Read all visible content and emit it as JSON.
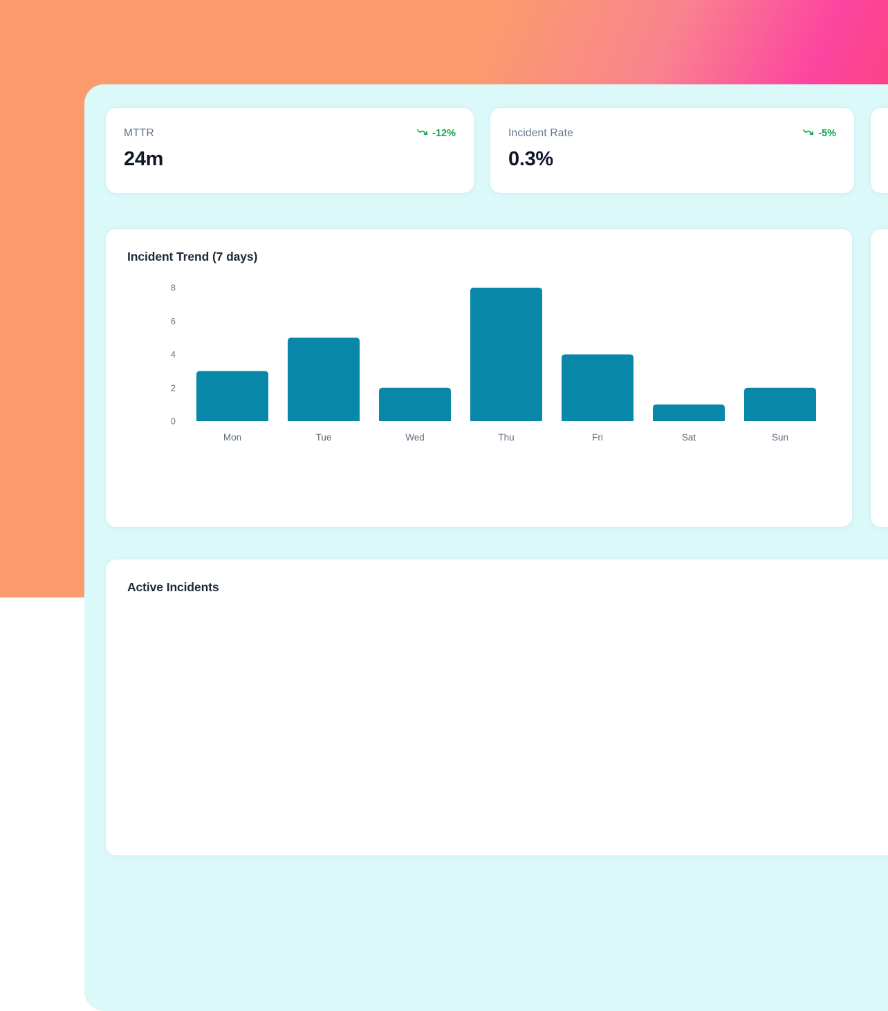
{
  "metrics": [
    {
      "label": "MTTR",
      "value": "24m",
      "trend": "-12%",
      "trend_direction": "down",
      "trend_icon": "trending-down-icon"
    },
    {
      "label": "Incident Rate",
      "value": "0.3%",
      "trend": "-5%",
      "trend_direction": "down",
      "trend_icon": "trending-down-icon"
    }
  ],
  "chart_data": {
    "type": "bar",
    "title": "Incident Trend (7 days)",
    "categories": [
      "Mon",
      "Tue",
      "Wed",
      "Thu",
      "Fri",
      "Sat",
      "Sun"
    ],
    "values": [
      3,
      5,
      2,
      8,
      4,
      1,
      2
    ],
    "xlabel": "",
    "ylabel": "",
    "ylim": [
      0,
      8
    ],
    "yticks": [
      0,
      2,
      4,
      6,
      8
    ],
    "grid": false,
    "legend": false,
    "bar_color": "#0887a8"
  },
  "sections": {
    "active_incidents_title": "Active Incidents"
  },
  "colors": {
    "background_gradient": [
      "#fb9b6e",
      "#fc44a0",
      "#f94350"
    ],
    "panel": "#dcf9fa",
    "card": "#ffffff",
    "bar": "#0887a8",
    "trend_green": "#16a34a",
    "label_gray": "#64748b",
    "value_dark": "#0f172a"
  }
}
